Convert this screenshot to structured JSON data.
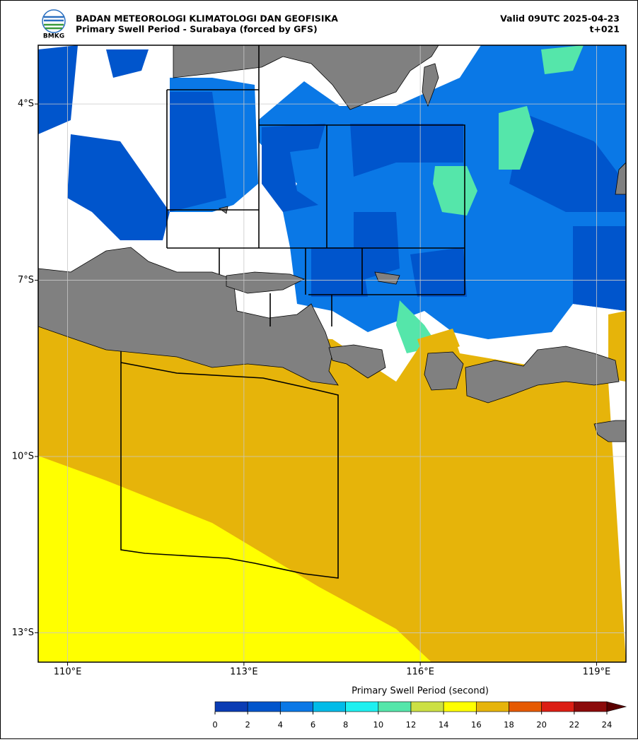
{
  "header": {
    "agency": "BADAN METEOROLOGI KLIMATOLOGI DAN GEOFISIKA",
    "title": "Primary Swell Period - Surabaya (forced by GFS)",
    "valid": "Valid 09UTC 2025-04-23",
    "lead": "t+021",
    "logo_text": "BMKG"
  },
  "map": {
    "xlim": [
      109.5,
      119.5
    ],
    "ylim": [
      -13.5,
      -3
    ],
    "xticks": [
      {
        "value": 110,
        "label": "110°E"
      },
      {
        "value": 113,
        "label": "113°E"
      },
      {
        "value": 116,
        "label": "116°E"
      },
      {
        "value": 119,
        "label": "119°E"
      }
    ],
    "yticks": [
      {
        "value": -4,
        "label": "4°S"
      },
      {
        "value": -7,
        "label": "7°S"
      },
      {
        "value": -10,
        "label": "10°S"
      },
      {
        "value": -13,
        "label": "13°S"
      }
    ],
    "grid": true,
    "colorbar": {
      "label": "Primary Swell Period (second)",
      "levels": [
        0,
        2,
        4,
        6,
        8,
        10,
        12,
        14,
        16,
        18,
        20,
        22,
        24
      ],
      "colors": [
        "#0a3cb4",
        "#0055cc",
        "#0a78e6",
        "#00bbe8",
        "#1ef0f0",
        "#55e6aa",
        "#cce044",
        "#ffff00",
        "#e6b40a",
        "#e65a00",
        "#dc1e14",
        "#8c0a0a"
      ],
      "extend_color": "#5a0000"
    }
  }
}
